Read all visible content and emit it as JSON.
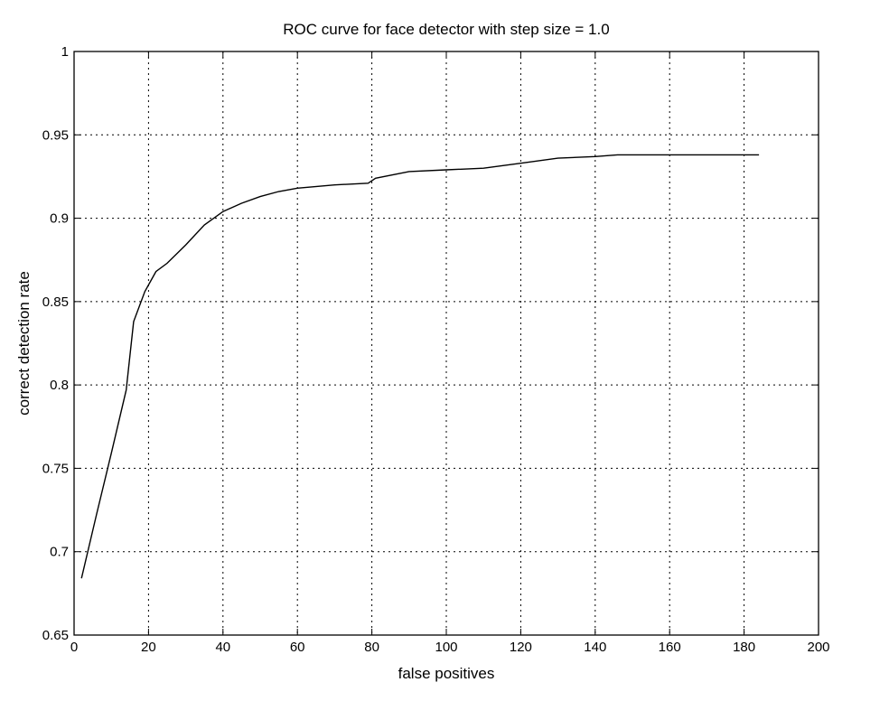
{
  "chart_data": {
    "type": "line",
    "title": "ROC curve for face detector with step size = 1.0",
    "xlabel": "false positives",
    "ylabel": "correct detection rate",
    "xlim": [
      0,
      200
    ],
    "ylim": [
      0.65,
      1.0
    ],
    "x_ticks": [
      "0",
      "20",
      "40",
      "60",
      "80",
      "100",
      "120",
      "140",
      "160",
      "180",
      "200"
    ],
    "y_ticks": [
      "0.65",
      "0.7",
      "0.75",
      "0.8",
      "0.85",
      "0.9",
      "0.95",
      "1"
    ],
    "grid": true,
    "series": [
      {
        "x": [
          2,
          6,
          10,
          14,
          16,
          19,
          22,
          25,
          30,
          35,
          40,
          45,
          50,
          55,
          60,
          70,
          79,
          81,
          90,
          100,
          110,
          120,
          130,
          140,
          146,
          150,
          160,
          170,
          184
        ],
        "y": [
          0.684,
          0.722,
          0.759,
          0.797,
          0.838,
          0.856,
          0.868,
          0.873,
          0.884,
          0.896,
          0.904,
          0.909,
          0.913,
          0.916,
          0.918,
          0.92,
          0.921,
          0.924,
          0.928,
          0.929,
          0.93,
          0.933,
          0.936,
          0.937,
          0.938,
          0.938,
          0.938,
          0.938,
          0.938
        ]
      }
    ]
  }
}
